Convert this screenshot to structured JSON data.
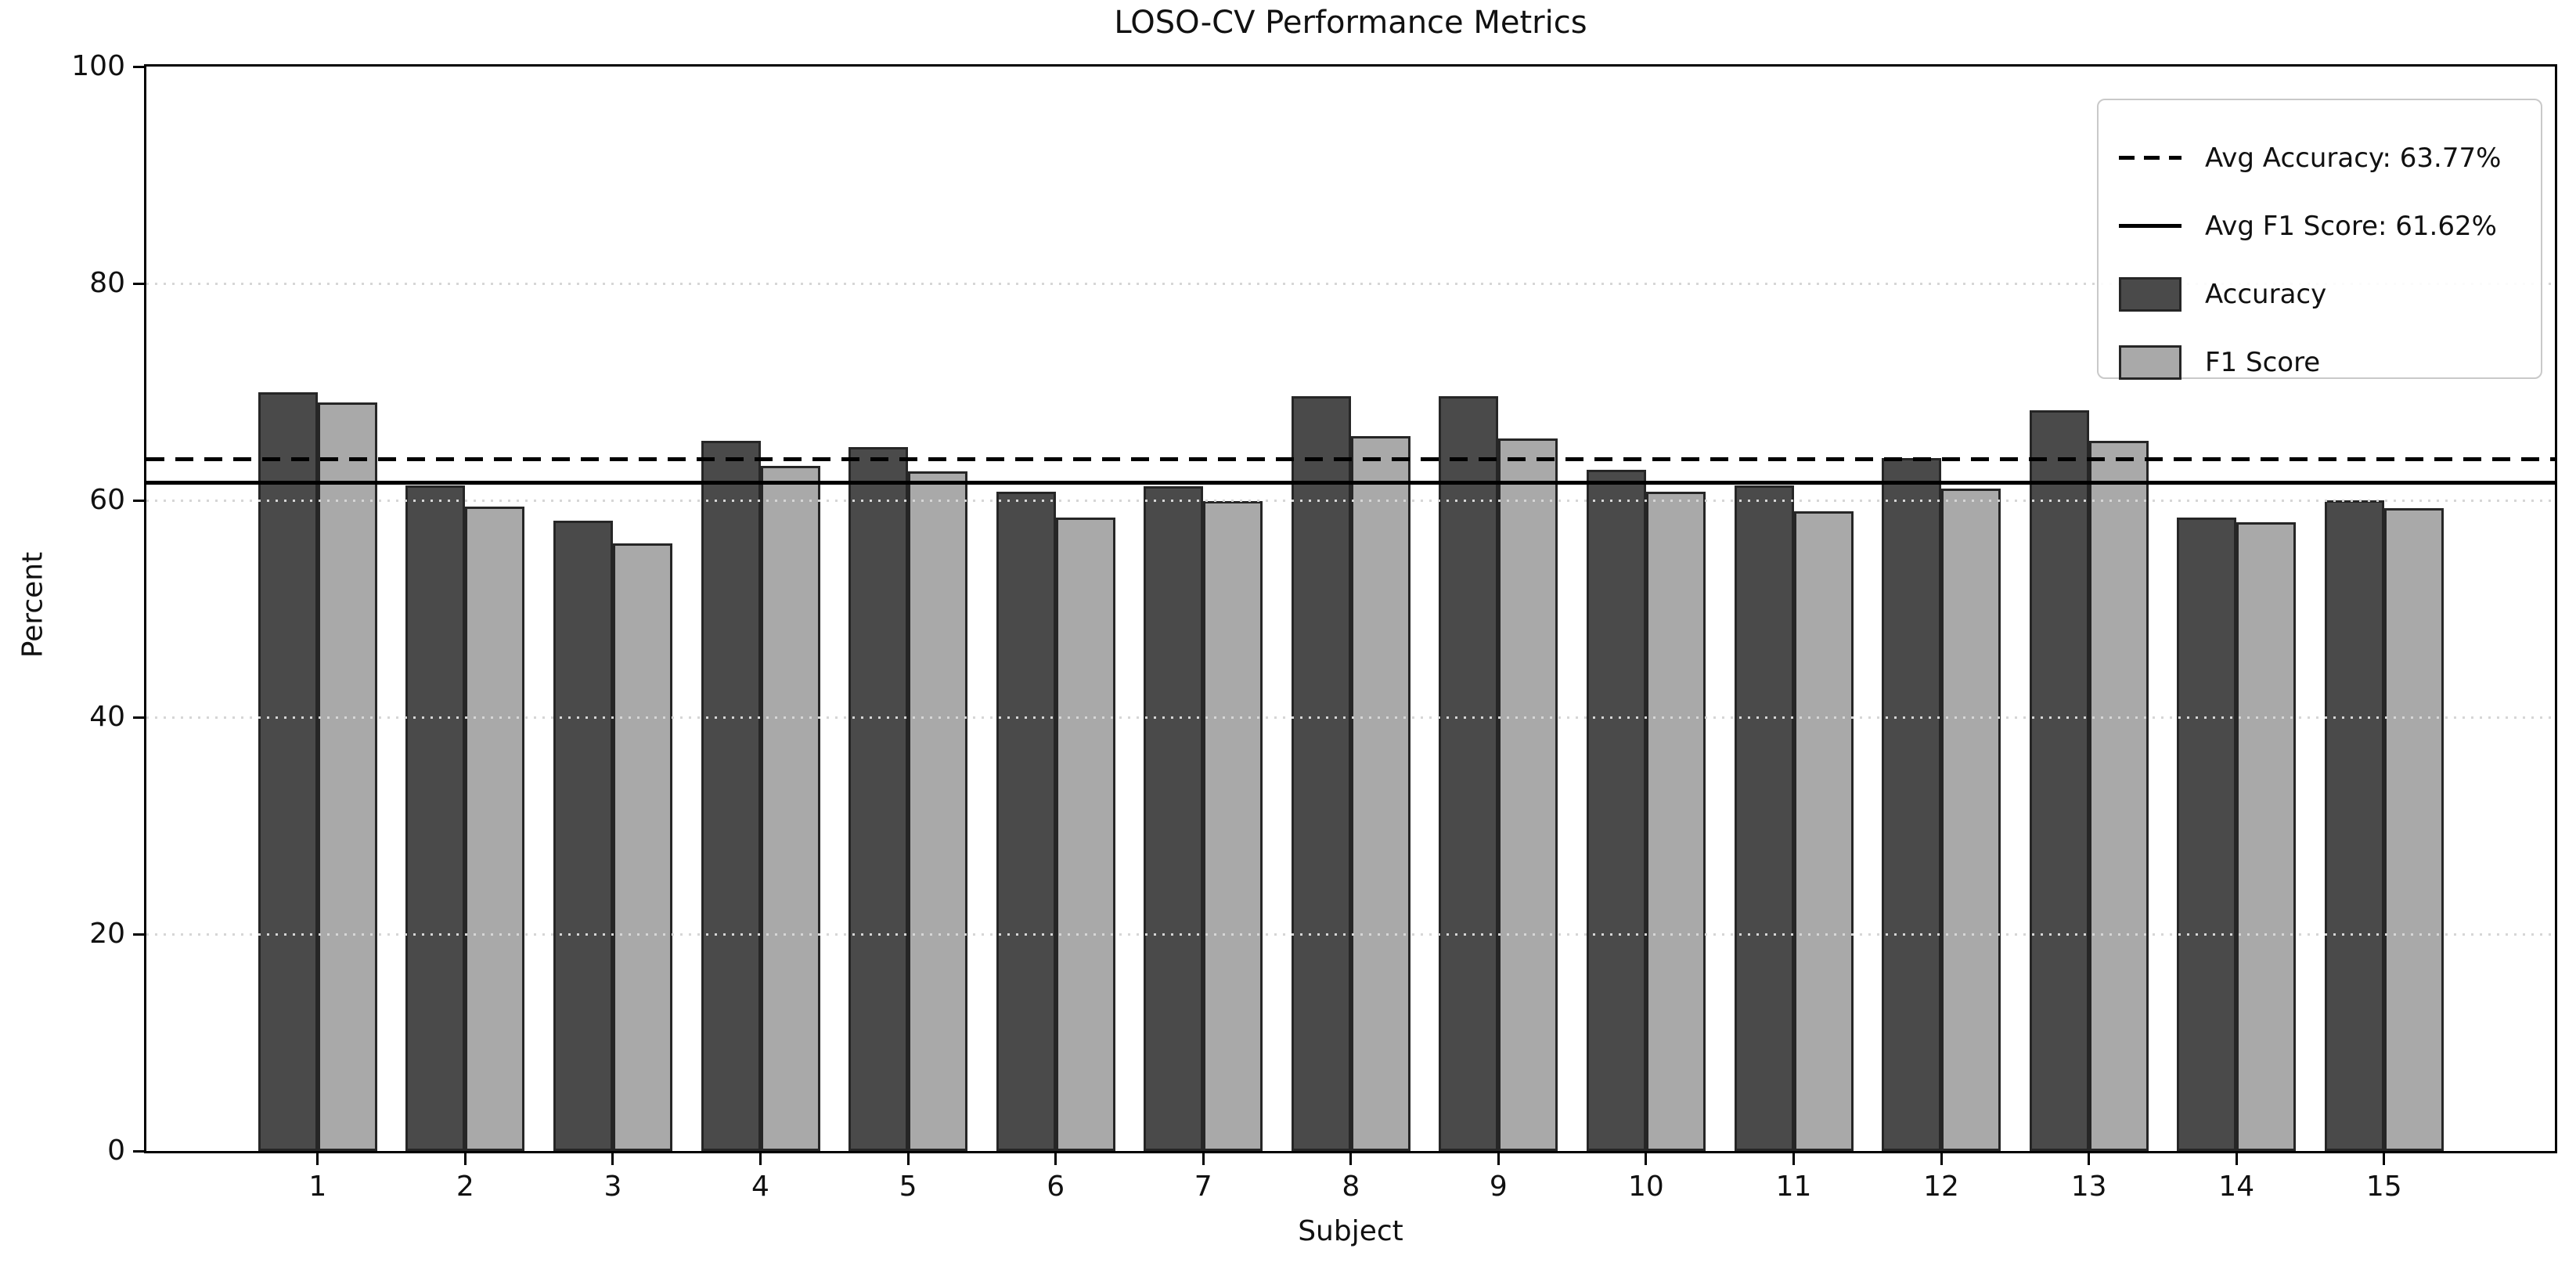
{
  "chart_data": {
    "type": "bar",
    "title": "LOSO-CV Performance Metrics",
    "xlabel": "Subject",
    "ylabel": "Percent",
    "ylim": [
      0,
      100
    ],
    "yticks": [
      0,
      20,
      40,
      60,
      80,
      100
    ],
    "grid": "y-dotted",
    "categories": [
      "1",
      "2",
      "3",
      "4",
      "5",
      "6",
      "7",
      "8",
      "9",
      "10",
      "11",
      "12",
      "13",
      "14",
      "15"
    ],
    "series": [
      {
        "name": "Accuracy",
        "color": "#4a4a4a",
        "edge_color": "#262626",
        "values": [
          70.0,
          61.4,
          58.1,
          65.5,
          64.9,
          60.8,
          61.3,
          69.6,
          69.6,
          62.8,
          61.4,
          63.9,
          68.3,
          58.4,
          60.0
        ]
      },
      {
        "name": "F1 Score",
        "color": "#a9a9a9",
        "edge_color": "#262626",
        "values": [
          69.0,
          59.4,
          56.0,
          63.2,
          62.7,
          58.4,
          59.9,
          65.9,
          65.7,
          60.8,
          59.0,
          61.1,
          65.5,
          58.0,
          59.3
        ]
      }
    ],
    "avg_lines": [
      {
        "label": "Avg Accuracy: 63.77%",
        "value": 63.77,
        "style": "dashed",
        "color": "#000000"
      },
      {
        "label": "Avg F1 Score: 61.62%",
        "value": 61.62,
        "style": "solid",
        "color": "#000000"
      }
    ],
    "legend": {
      "position": "upper right",
      "entries": [
        {
          "label": "Avg Accuracy: 63.77%",
          "sample": "dashed-line"
        },
        {
          "label": "Avg F1 Score: 61.62%",
          "sample": "solid-line"
        },
        {
          "label": "Accuracy",
          "sample": "dark-swatch"
        },
        {
          "label": "F1 Score",
          "sample": "light-swatch"
        }
      ]
    }
  }
}
